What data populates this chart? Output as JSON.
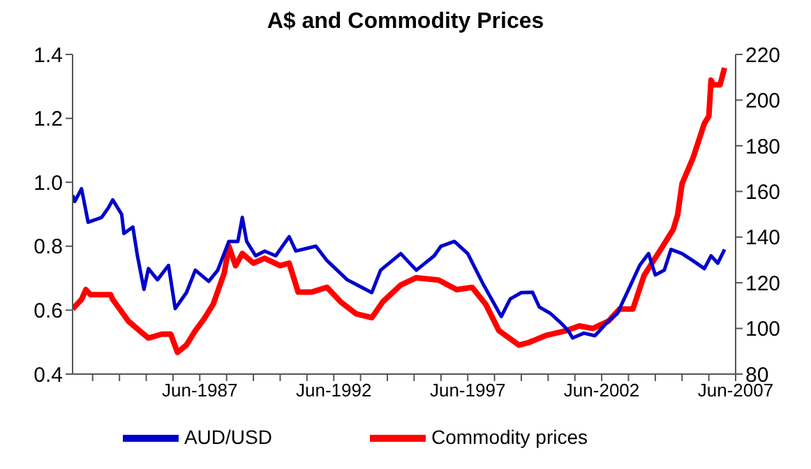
{
  "chart_data": {
    "type": "line",
    "title": "A$ and Commodity Prices",
    "xlim": [
      "1982-09",
      "2007-06"
    ],
    "xticks": [
      {
        "value": "1983-06",
        "label": null
      },
      {
        "value": "1984-06",
        "label": null
      },
      {
        "value": "1985-06",
        "label": null
      },
      {
        "value": "1986-06",
        "label": null
      },
      {
        "value": "1987-06",
        "label": "Jun-1987"
      },
      {
        "value": "1988-06",
        "label": null
      },
      {
        "value": "1989-06",
        "label": null
      },
      {
        "value": "1990-06",
        "label": null
      },
      {
        "value": "1991-06",
        "label": null
      },
      {
        "value": "1992-06",
        "label": "Jun-1992"
      },
      {
        "value": "1993-06",
        "label": null
      },
      {
        "value": "1994-06",
        "label": null
      },
      {
        "value": "1995-06",
        "label": null
      },
      {
        "value": "1996-06",
        "label": null
      },
      {
        "value": "1997-06",
        "label": "Jun-1997"
      },
      {
        "value": "1998-06",
        "label": null
      },
      {
        "value": "1999-06",
        "label": null
      },
      {
        "value": "2000-06",
        "label": null
      },
      {
        "value": "2001-06",
        "label": null
      },
      {
        "value": "2002-06",
        "label": "Jun-2002"
      },
      {
        "value": "2003-06",
        "label": null
      },
      {
        "value": "2004-06",
        "label": null
      },
      {
        "value": "2005-06",
        "label": null
      },
      {
        "value": "2006-06",
        "label": null
      },
      {
        "value": "2007-06",
        "label": "Jun-2007"
      }
    ],
    "ylim": [
      0.4,
      1.4
    ],
    "yticks": [
      0.4,
      0.6,
      0.8,
      {
        "value": 1,
        "label": "1.0"
      },
      1.2,
      1.4
    ],
    "y2lim": [
      80,
      220
    ],
    "y2ticks": [
      80,
      100,
      120,
      140,
      160,
      180,
      200,
      220
    ],
    "legend": "bottom",
    "marker": "none",
    "series": [
      {
        "name": "AUD/USD",
        "color": "#0000cc",
        "x": [
          "1982-09",
          "1982-10",
          "1983-01",
          "1983-04",
          "1983-10",
          "1984-01",
          "1984-03",
          "1984-07",
          "1984-08",
          "1984-12",
          "1985-02",
          "1985-05",
          "1985-07",
          "1985-11",
          "1986-04",
          "1986-07",
          "1986-12",
          "1987-04",
          "1987-10",
          "1988-02",
          "1988-07",
          "1988-11",
          "1989-01",
          "1989-03",
          "1989-07",
          "1989-11",
          "1990-04",
          "1990-10",
          "1991-01",
          "1991-10",
          "1992-03",
          "1992-12",
          "1993-11",
          "1994-03",
          "1994-12",
          "1995-07",
          "1996-03",
          "1996-06",
          "1996-12",
          "1997-06",
          "1998-01",
          "1998-09",
          "1999-01",
          "1999-06",
          "1999-11",
          "2000-02",
          "2000-07",
          "2000-12",
          "2001-03",
          "2001-05",
          "2001-10",
          "2002-03",
          "2002-09",
          "2003-01",
          "2003-06",
          "2003-11",
          "2004-03",
          "2004-06",
          "2004-10",
          "2005-01",
          "2005-06",
          "2005-11",
          "2006-04",
          "2006-07",
          "2006-10",
          "2007-01"
        ],
        "values": [
          0.96,
          0.94,
          0.98,
          0.875,
          0.89,
          0.92,
          0.945,
          0.9,
          0.84,
          0.86,
          0.77,
          0.665,
          0.73,
          0.695,
          0.74,
          0.605,
          0.655,
          0.725,
          0.69,
          0.725,
          0.815,
          0.815,
          0.89,
          0.815,
          0.77,
          0.785,
          0.77,
          0.83,
          0.785,
          0.8,
          0.755,
          0.695,
          0.655,
          0.725,
          0.777,
          0.725,
          0.77,
          0.8,
          0.815,
          0.777,
          0.68,
          0.58,
          0.635,
          0.655,
          0.656,
          0.61,
          0.59,
          0.558,
          0.536,
          0.513,
          0.528,
          0.52,
          0.566,
          0.59,
          0.664,
          0.74,
          0.777,
          0.71,
          0.725,
          0.79,
          0.777,
          0.754,
          0.73,
          0.77,
          0.747,
          0.79
        ]
      },
      {
        "name": "Commodity prices",
        "color": "#ff0000",
        "axis": "y2",
        "x": [
          "1982-09",
          "1983-01",
          "1983-03",
          "1983-05",
          "1984-02",
          "1984-03",
          "1984-10",
          "1985-03",
          "1985-07",
          "1986-01",
          "1986-05",
          "1986-08",
          "1986-12",
          "1987-04",
          "1987-08",
          "1987-12",
          "1988-05",
          "1988-07",
          "1988-10",
          "1989-01",
          "1989-06",
          "1989-11",
          "1990-06",
          "1990-10",
          "1991-02",
          "1991-08",
          "1992-03",
          "1992-09",
          "1993-04",
          "1993-11",
          "1994-04",
          "1994-12",
          "1995-07",
          "1996-05",
          "1997-01",
          "1997-08",
          "1998-02",
          "1998-08",
          "1999-05",
          "1999-09",
          "2000-05",
          "2001-02",
          "2001-08",
          "2002-02",
          "2002-09",
          "2003-02",
          "2003-08",
          "2004-01",
          "2004-08",
          "2005-02",
          "2005-04",
          "2005-06",
          "2005-11",
          "2006-04",
          "2006-06",
          "2006-07",
          "2006-08",
          "2006-11",
          "2007-01"
        ],
        "values": [
          108.5,
          112.7,
          117,
          114.8,
          114.8,
          112.7,
          103.2,
          99,
          95.8,
          97.5,
          97.5,
          89.5,
          92.7,
          99,
          104.3,
          110.6,
          124.4,
          136,
          127.5,
          132.8,
          128.6,
          130.7,
          127.5,
          128.6,
          115.9,
          115.9,
          118,
          111.7,
          106.4,
          104.7,
          111.7,
          119,
          122.2,
          121.2,
          117,
          118,
          110.6,
          99,
          92.7,
          93.7,
          96.9,
          99,
          101.1,
          100,
          103.2,
          108.5,
          108.5,
          123.3,
          133.9,
          143.4,
          149.7,
          163.4,
          175,
          189.8,
          193,
          208.8,
          206.7,
          206.7,
          214.1
        ]
      }
    ]
  }
}
